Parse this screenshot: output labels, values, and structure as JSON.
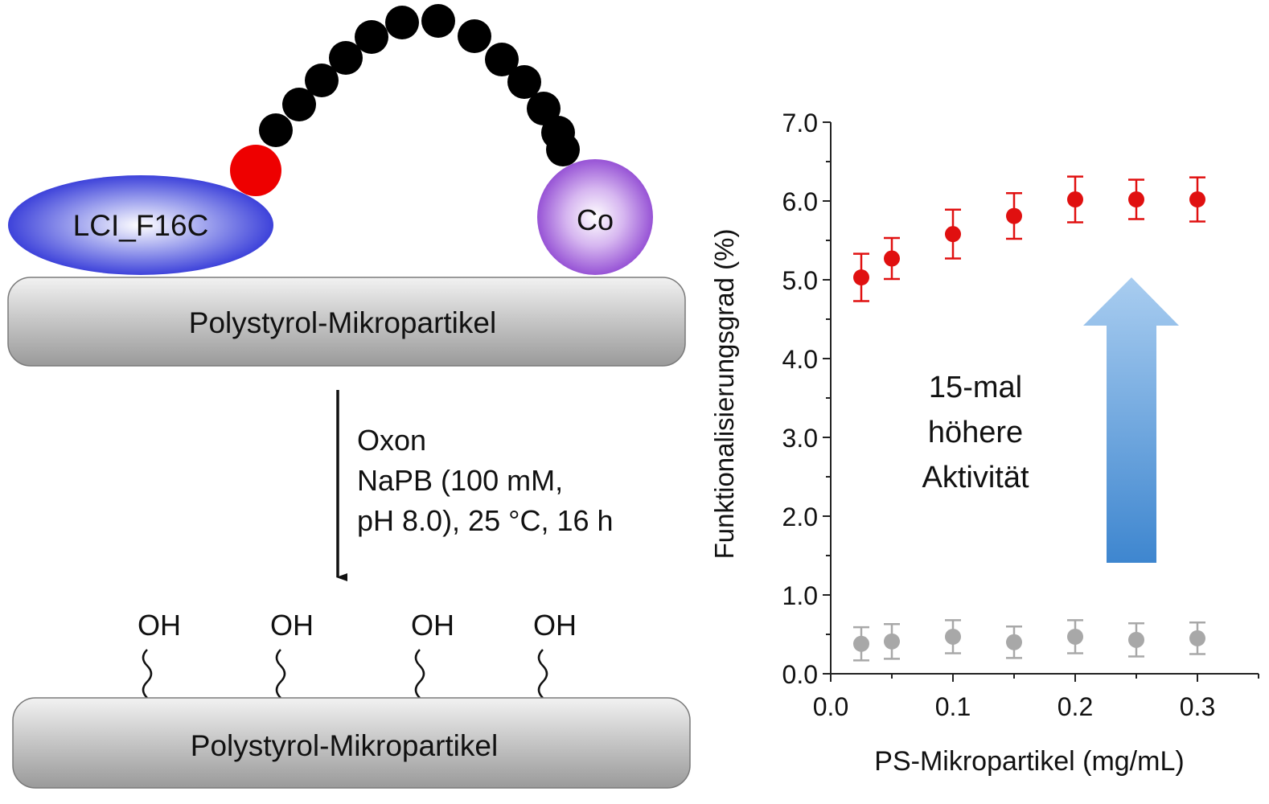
{
  "scheme": {
    "enzyme_label": "LCI_F16C",
    "cofactor_label": "Co",
    "particle_label_top": "Polystyrol-Mikropartikel",
    "particle_label_bottom": "Polystyrol-Mikropartikel",
    "conditions": [
      "Oxon",
      "NaPB (100 mM,",
      "pH 8.0), 25 °C, 16 h"
    ],
    "oh_groups": [
      "OH",
      "OH",
      "OH",
      "OH"
    ],
    "colors": {
      "enzyme": "#2a2fd6",
      "cofactor": "#8a3fd0",
      "linker_bead": "#000000",
      "anchor_bead": "#ee0000",
      "particle": "#b8b8b8"
    }
  },
  "chart_data": {
    "type": "scatter",
    "xlabel": "PS-Mikropartikel (mg/mL)",
    "ylabel": "Funktionalisierungsgrad (%)",
    "xlim": [
      0.0,
      0.35
    ],
    "ylim": [
      0.0,
      7.0
    ],
    "x_ticks": [
      "0.0",
      "0.1",
      "0.2",
      "0.3"
    ],
    "y_ticks": [
      "0.0",
      "1.0",
      "2.0",
      "3.0",
      "4.0",
      "5.0",
      "6.0",
      "7.0"
    ],
    "series": [
      {
        "color": "#e01010",
        "x": [
          0.025,
          0.05,
          0.1,
          0.15,
          0.2,
          0.25,
          0.3
        ],
        "y": [
          5.03,
          5.27,
          5.58,
          5.81,
          6.02,
          6.02,
          6.02
        ],
        "error": [
          0.3,
          0.26,
          0.31,
          0.29,
          0.29,
          0.25,
          0.28
        ]
      },
      {
        "color": "#a8a8a8",
        "x": [
          0.025,
          0.05,
          0.1,
          0.15,
          0.2,
          0.25,
          0.3
        ],
        "y": [
          0.38,
          0.41,
          0.47,
          0.4,
          0.47,
          0.43,
          0.45
        ],
        "error": [
          0.21,
          0.22,
          0.21,
          0.2,
          0.21,
          0.21,
          0.2
        ]
      }
    ],
    "annotation": [
      "15-mal",
      "höhere",
      "Aktivität"
    ],
    "annotation_arrow_color": "#4a8fd6",
    "grid": false
  }
}
